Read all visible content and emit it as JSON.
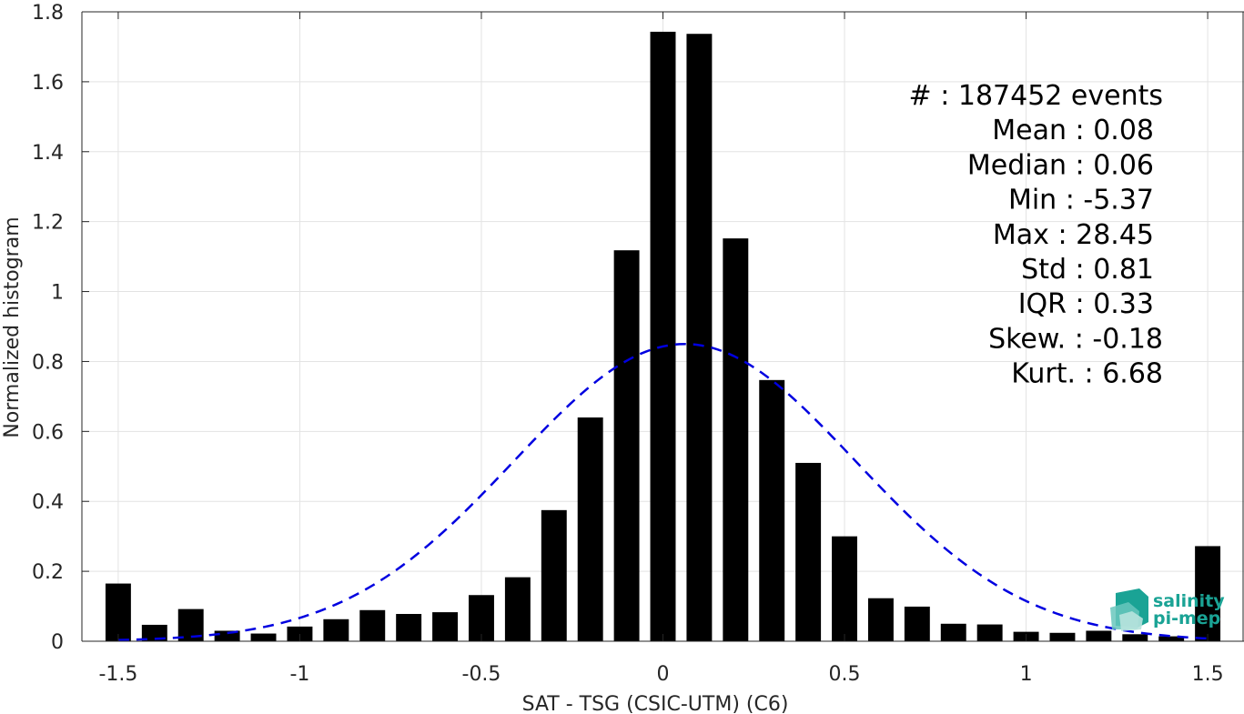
{
  "chart_data": {
    "type": "bar",
    "xlabel": "SAT - TSG (CSIC-UTM) (C6)",
    "ylabel": "Normalized histogram",
    "xlim": [
      -1.6,
      1.6
    ],
    "ylim": [
      0,
      1.8
    ],
    "xticks": [
      -1.5,
      -1,
      -0.5,
      0,
      0.5,
      1,
      1.5
    ],
    "xtick_labels": [
      "-1.5",
      "-1",
      "-0.5",
      "0",
      "0.5",
      "1",
      "1.5"
    ],
    "yticks": [
      0,
      0.2,
      0.4,
      0.6,
      0.8,
      1,
      1.2,
      1.4,
      1.6,
      1.8
    ],
    "ytick_labels": [
      "0",
      "0.2",
      "0.4",
      "0.6",
      "0.8",
      "1",
      "1.2",
      "1.4",
      "1.6",
      "1.8"
    ],
    "grid": true,
    "bar_color": "#000000",
    "bar_width": 0.07,
    "bins": [
      {
        "x": -1.5,
        "value": 0.165
      },
      {
        "x": -1.4,
        "value": 0.047
      },
      {
        "x": -1.3,
        "value": 0.092
      },
      {
        "x": -1.2,
        "value": 0.03
      },
      {
        "x": -1.1,
        "value": 0.022
      },
      {
        "x": -1.0,
        "value": 0.042
      },
      {
        "x": -0.9,
        "value": 0.063
      },
      {
        "x": -0.8,
        "value": 0.089
      },
      {
        "x": -0.7,
        "value": 0.078
      },
      {
        "x": -0.6,
        "value": 0.083
      },
      {
        "x": -0.5,
        "value": 0.132
      },
      {
        "x": -0.4,
        "value": 0.183
      },
      {
        "x": -0.3,
        "value": 0.375
      },
      {
        "x": -0.2,
        "value": 0.64
      },
      {
        "x": -0.1,
        "value": 1.118
      },
      {
        "x": 0.0,
        "value": 1.743
      },
      {
        "x": 0.1,
        "value": 1.737
      },
      {
        "x": 0.2,
        "value": 1.152
      },
      {
        "x": 0.3,
        "value": 0.747
      },
      {
        "x": 0.4,
        "value": 0.51
      },
      {
        "x": 0.5,
        "value": 0.3
      },
      {
        "x": 0.6,
        "value": 0.123
      },
      {
        "x": 0.7,
        "value": 0.099
      },
      {
        "x": 0.8,
        "value": 0.05
      },
      {
        "x": 0.9,
        "value": 0.048
      },
      {
        "x": 1.0,
        "value": 0.027
      },
      {
        "x": 1.1,
        "value": 0.024
      },
      {
        "x": 1.2,
        "value": 0.03
      },
      {
        "x": 1.3,
        "value": 0.02
      },
      {
        "x": 1.4,
        "value": 0.014
      },
      {
        "x": 1.5,
        "value": 0.272
      }
    ],
    "fit_curve": {
      "type": "gaussian",
      "mean": 0.06,
      "sigma": 0.47,
      "peak": 0.85,
      "x_range": [
        -1.5,
        1.5
      ],
      "color": "#0000e0",
      "style": "dashed"
    },
    "statistics": [
      "#  : 187452 events",
      "Mean : 0.08",
      "Median : 0.06",
      "Min : -5.37",
      "Max : 28.45",
      "Std : 0.81",
      "IQR : 0.33",
      "Skew. : -0.18",
      "Kurt. : 6.68"
    ]
  },
  "logo": {
    "line1": "salinity",
    "line2": "pi-mep",
    "color": "#1aa395"
  }
}
